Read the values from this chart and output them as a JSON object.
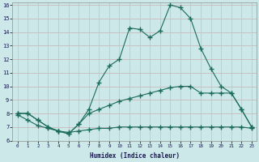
{
  "title": "",
  "xlabel": "Humidex (Indice chaleur)",
  "bg_color": "#cce8e8",
  "line_color": "#1a6b5a",
  "grid_h_color": "#c8b0b0",
  "grid_v_color": "#b0c8c8",
  "xlim": [
    -0.5,
    23.5
  ],
  "ylim": [
    6,
    16.2
  ],
  "yticks": [
    6,
    7,
    8,
    9,
    10,
    11,
    12,
    13,
    14,
    15,
    16
  ],
  "xticks": [
    0,
    1,
    2,
    3,
    4,
    5,
    6,
    7,
    8,
    9,
    10,
    11,
    12,
    13,
    14,
    15,
    16,
    17,
    18,
    19,
    20,
    21,
    22,
    23
  ],
  "line1_x": [
    0,
    1,
    2,
    3,
    4,
    5,
    6,
    7,
    8,
    9,
    10,
    11,
    12,
    13,
    14,
    15,
    16,
    17,
    18,
    19,
    20,
    21,
    22,
    23
  ],
  "line1_y": [
    8.0,
    8.0,
    7.5,
    7.0,
    6.7,
    6.5,
    7.2,
    8.3,
    10.3,
    11.5,
    12.0,
    14.3,
    14.2,
    13.6,
    14.1,
    16.0,
    15.8,
    15.0,
    12.8,
    11.3,
    10.0,
    9.5,
    8.3,
    7.0
  ],
  "line2_x": [
    0,
    1,
    2,
    3,
    4,
    5,
    6,
    7,
    8,
    9,
    10,
    11,
    12,
    13,
    14,
    15,
    16,
    17,
    18,
    19,
    20,
    21,
    22,
    23
  ],
  "line2_y": [
    8.0,
    8.0,
    7.5,
    7.0,
    6.7,
    6.5,
    7.2,
    8.0,
    8.3,
    8.6,
    8.9,
    9.1,
    9.3,
    9.5,
    9.7,
    9.9,
    10.0,
    10.0,
    9.5,
    9.5,
    9.5,
    9.5,
    8.3,
    7.0
  ],
  "line3_x": [
    0,
    1,
    2,
    3,
    4,
    5,
    6,
    7,
    8,
    9,
    10,
    11,
    12,
    13,
    14,
    15,
    16,
    17,
    18,
    19,
    20,
    21,
    22,
    23
  ],
  "line3_y": [
    7.9,
    7.5,
    7.1,
    6.9,
    6.7,
    6.6,
    6.7,
    6.8,
    6.9,
    6.9,
    7.0,
    7.0,
    7.0,
    7.0,
    7.0,
    7.0,
    7.0,
    7.0,
    7.0,
    7.0,
    7.0,
    7.0,
    7.0,
    6.9
  ]
}
